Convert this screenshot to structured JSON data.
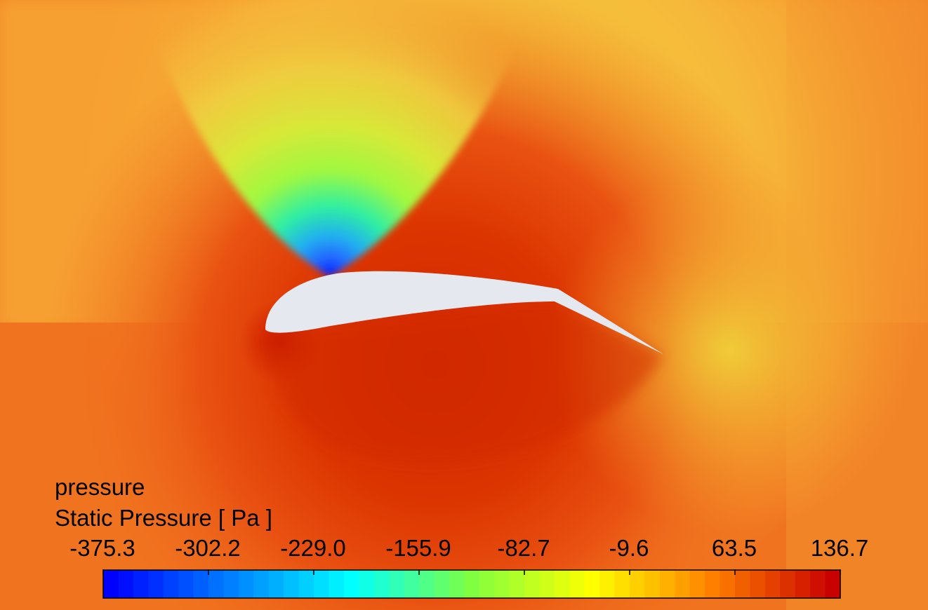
{
  "legend": {
    "variable": "pressure",
    "title": "Static Pressure [ Pa ]",
    "ticks": [
      "-375.3",
      "-302.2",
      "-229.0",
      "-155.9",
      "-82.7",
      "-9.6",
      "63.5",
      "136.7"
    ],
    "min": -375.3,
    "max": 136.7,
    "levels": 49
  },
  "colors": {
    "airfoil": "#e6e8f0",
    "colormap": [
      "#0000ff",
      "#0080ff",
      "#00ffff",
      "#80ff40",
      "#ffff00",
      "#ff8000",
      "#c80000"
    ]
  }
}
